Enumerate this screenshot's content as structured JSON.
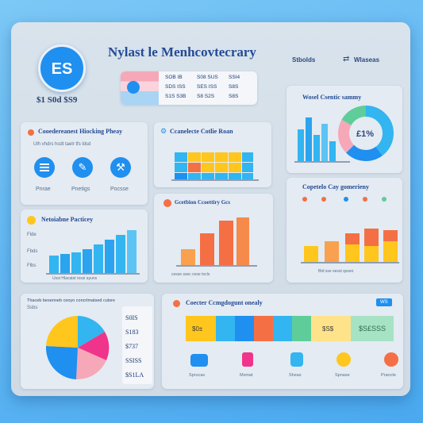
{
  "header": {
    "logo_text": "ES",
    "title": "Nylast le Menhcovtecrary",
    "balance": "$1 S0d $S9",
    "menu_left": "Stbolds",
    "menu_right": "Wlaseas"
  },
  "info_card": {
    "rows": [
      [
        "SOB IB",
        "S08 SUS",
        "SSI4"
      ],
      [
        "SDS ISS",
        "SES ISS",
        "S8S"
      ],
      [
        "S1S S3B",
        "S8 S2S",
        "S8S"
      ]
    ]
  },
  "card_top_right": {
    "title": "Wosel Csentic sammy",
    "center_value": "£1%"
  },
  "card_mid_left": {
    "title": "Cooedereanest Hiocking Pheay",
    "subtitle": "Ulh vhdrs hsdt taelr tfs ldsd",
    "icons": [
      {
        "label": "Pnrae",
        "icon": "list-icon"
      },
      {
        "label": "Pnetigs",
        "icon": "edit-icon"
      },
      {
        "label": "Pocsse",
        "icon": "tool-icon"
      }
    ]
  },
  "card_mid_center": {
    "title": "Ccanelecte Cotlie Roan"
  },
  "card_bars_center": {
    "title": "Gcetbion Ccoettiry Gcs",
    "axis": "cesse ssec cese tocls"
  },
  "card_bars_left": {
    "title": "Netoiabne Pacticey",
    "y_labels": [
      "Flde",
      "Fbds",
      "Flbs"
    ],
    "axis": "Usst Hlacatal rossi ayuns"
  },
  "card_right_mid": {
    "title": "Copetelo Cay gomerieny",
    "axis": "Btd sse sesst qsseo"
  },
  "card_pie": {
    "title": "Thaceb besenneb ceoyo concrlmatsed cutsre",
    "subtitle": "Ssbs",
    "values": [
      "S0IS",
      "S183",
      "$737",
      "SSISS",
      "$S1LA"
    ]
  },
  "card_bottom": {
    "title": "Coecter Ccmgdogunt onealy",
    "tag": "WS",
    "strip_labels": [
      "$0±",
      "$S$",
      "$S£SSS"
    ],
    "icons": [
      {
        "label": "Sprucas",
        "icon": "hand-icon"
      },
      {
        "label": "Msmat",
        "icon": "lock-icon"
      },
      {
        "label": "Sheas",
        "icon": "badge-icon"
      },
      {
        "label": "Spnase",
        "icon": "bulb-icon"
      },
      {
        "label": "Prancte",
        "icon": "power-icon"
      }
    ]
  },
  "colors": {
    "accent": "#1f8ff0",
    "orange": "#f56f45",
    "yellow": "#ffc61e",
    "cyan": "#32b5f0",
    "magenta": "#f0348b",
    "green": "#5fcd9a"
  }
}
